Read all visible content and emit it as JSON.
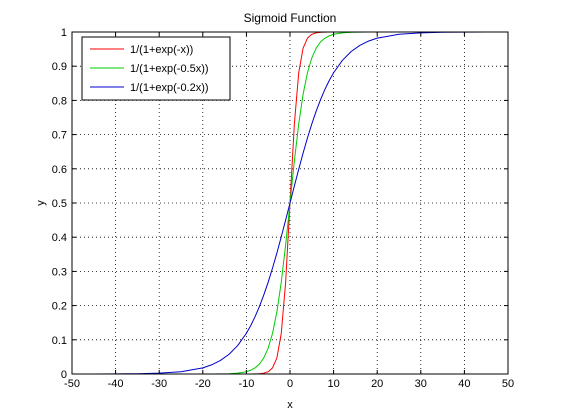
{
  "chart_data": {
    "type": "line",
    "title": "Sigmoid Function",
    "xlabel": "x",
    "ylabel": "y",
    "xlim": [
      -50,
      50
    ],
    "ylim": [
      0,
      1
    ],
    "x_ticks": [
      -50,
      -40,
      -30,
      -20,
      -10,
      0,
      10,
      20,
      30,
      40,
      50
    ],
    "x_tick_labels": [
      "-50",
      "-40",
      "-30",
      "-20",
      "-10",
      "0",
      "10",
      "20",
      "30",
      "40",
      "50"
    ],
    "y_ticks": [
      0,
      0.1,
      0.2,
      0.3,
      0.4,
      0.5,
      0.6,
      0.7,
      0.8,
      0.9,
      1
    ],
    "y_tick_labels": [
      "0",
      "0.1",
      "0.2",
      "0.3",
      "0.4",
      "0.5",
      "0.6",
      "0.7",
      "0.8",
      "0.9",
      "1"
    ],
    "grid": true,
    "legend_position": "top-left",
    "x": [
      -50,
      -45,
      -40,
      -35,
      -30,
      -25,
      -20,
      -18,
      -16,
      -14,
      -12,
      -10,
      -9,
      -8,
      -7,
      -6,
      -5,
      -4,
      -3,
      -2,
      -1,
      0,
      1,
      2,
      3,
      4,
      5,
      6,
      7,
      8,
      9,
      10,
      12,
      14,
      16,
      18,
      20,
      25,
      30,
      35,
      40,
      45,
      50
    ],
    "series": [
      {
        "name": "1/(1+exp(-x))",
        "color": "#ff0000",
        "values": [
          0.0,
          0.0,
          0.0,
          0.0,
          0.0,
          0.0,
          0.0,
          0.0,
          0.0,
          0.0,
          0.0,
          5e-05,
          0.0001,
          0.0003,
          0.0009,
          0.0025,
          0.0067,
          0.018,
          0.0474,
          0.1192,
          0.2689,
          0.5,
          0.7311,
          0.8808,
          0.9526,
          0.982,
          0.9933,
          0.9975,
          0.9991,
          0.9997,
          0.9999,
          1.0,
          1.0,
          1.0,
          1.0,
          1.0,
          1.0,
          1.0,
          1.0,
          1.0,
          1.0,
          1.0,
          1.0
        ]
      },
      {
        "name": "1/(1+exp(-0.5x))",
        "color": "#00cc00",
        "values": [
          0.0,
          0.0,
          0.0,
          0.0,
          0.0,
          0.0,
          5e-05,
          0.0001,
          0.0003,
          0.0009,
          0.0025,
          0.0067,
          0.011,
          0.018,
          0.0293,
          0.0474,
          0.0759,
          0.1192,
          0.1824,
          0.2689,
          0.3775,
          0.5,
          0.6225,
          0.7311,
          0.8176,
          0.8808,
          0.9241,
          0.9526,
          0.9707,
          0.982,
          0.989,
          0.9933,
          0.9975,
          0.9991,
          0.9997,
          0.9999,
          1.0,
          1.0,
          1.0,
          1.0,
          1.0,
          1.0,
          1.0
        ]
      },
      {
        "name": "1/(1+exp(-0.2x))",
        "color": "#0000cc",
        "values": [
          0.0,
          0.0001,
          0.0003,
          0.0009,
          0.0025,
          0.0067,
          0.018,
          0.0266,
          0.0392,
          0.0573,
          0.0832,
          0.1192,
          0.1419,
          0.168,
          0.1978,
          0.2315,
          0.2689,
          0.31,
          0.3543,
          0.4013,
          0.4502,
          0.5,
          0.5498,
          0.5987,
          0.6457,
          0.69,
          0.7311,
          0.7685,
          0.8022,
          0.832,
          0.8581,
          0.8808,
          0.9168,
          0.9427,
          0.9608,
          0.9734,
          0.982,
          0.9933,
          0.9975,
          0.9991,
          0.9997,
          0.9999,
          1.0
        ]
      }
    ]
  }
}
